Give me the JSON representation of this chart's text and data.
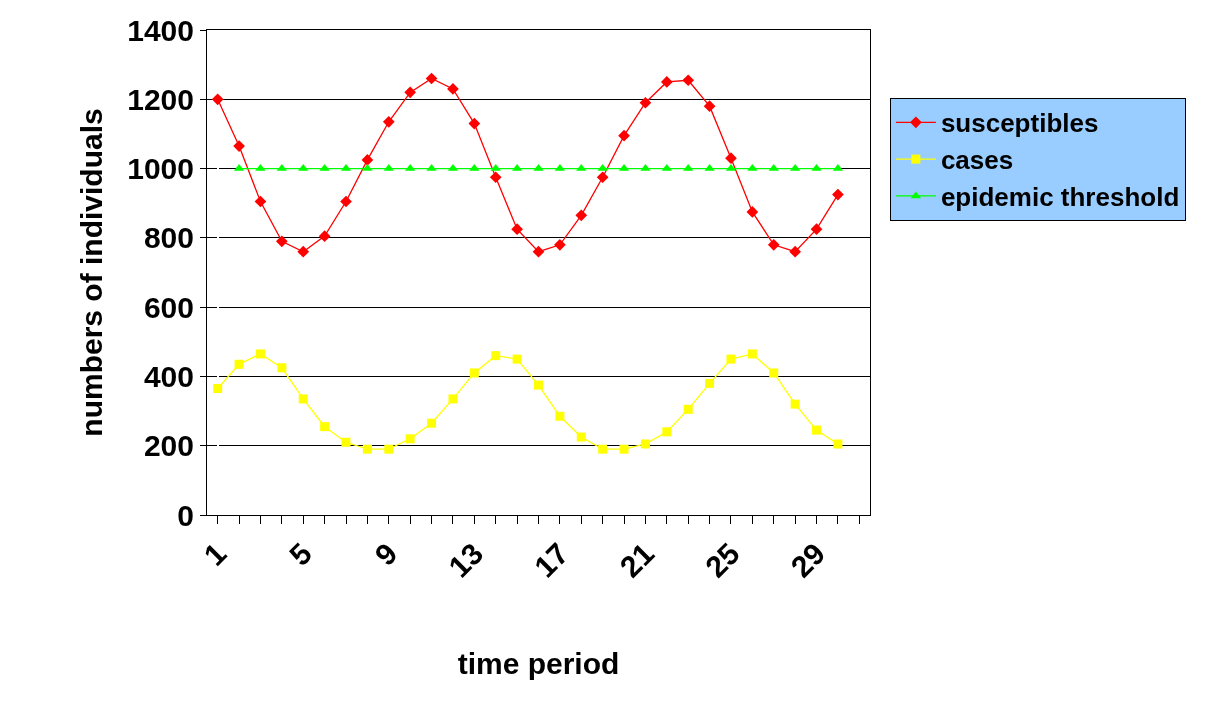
{
  "chart_data": {
    "type": "line",
    "xlabel": "time period",
    "ylabel": "numbers of individuals",
    "categories": [
      "1",
      null,
      null,
      null,
      "5",
      null,
      null,
      null,
      "9",
      null,
      null,
      null,
      "13",
      null,
      null,
      null,
      "17",
      null,
      null,
      null,
      "21",
      null,
      null,
      null,
      "25",
      null,
      null,
      null,
      "29",
      null,
      null
    ],
    "series": [
      {
        "name": "susceptibles",
        "color": "#ff0000",
        "marker": "diamond",
        "values": [
          1200,
          1065,
          905,
          790,
          760,
          805,
          905,
          1025,
          1135,
          1220,
          1260,
          1230,
          1130,
          975,
          825,
          760,
          780,
          865,
          975,
          1095,
          1190,
          1250,
          1255,
          1180,
          1030,
          875,
          780,
          760,
          825,
          925,
          null
        ]
      },
      {
        "name": "cases",
        "color": "#ffff00",
        "marker": "square",
        "values": [
          365,
          435,
          465,
          425,
          335,
          255,
          210,
          190,
          190,
          220,
          265,
          335,
          410,
          460,
          450,
          375,
          285,
          225,
          190,
          190,
          205,
          240,
          305,
          380,
          450,
          465,
          410,
          320,
          245,
          205,
          null
        ]
      },
      {
        "name": "epidemic threshold",
        "color": "#00ff00",
        "marker": "triangle",
        "values": [
          null,
          1000,
          1000,
          1000,
          1000,
          1000,
          1000,
          1000,
          1000,
          1000,
          1000,
          1000,
          1000,
          1000,
          1000,
          1000,
          1000,
          1000,
          1000,
          1000,
          1000,
          1000,
          1000,
          1000,
          1000,
          1000,
          1000,
          1000,
          1000,
          1000,
          null
        ]
      }
    ],
    "ylim": [
      0,
      1400
    ],
    "yticks": [
      0,
      200,
      400,
      600,
      800,
      1000,
      1200,
      1400
    ],
    "grid": "y",
    "legend": "right"
  }
}
